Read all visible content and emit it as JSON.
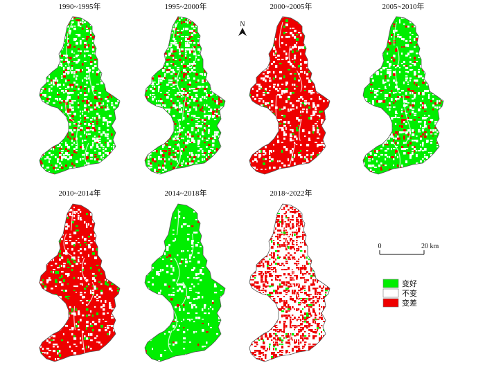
{
  "panels": [
    {
      "title": "1990~1995年",
      "dominant": "improve",
      "mix": {
        "improve": 0.7,
        "nochange": 0.22,
        "degrade": 0.08
      }
    },
    {
      "title": "1995~2000年",
      "dominant": "improve",
      "mix": {
        "improve": 0.66,
        "nochange": 0.24,
        "degrade": 0.1
      }
    },
    {
      "title": "2000~2005年",
      "dominant": "degrade",
      "mix": {
        "improve": 0.04,
        "nochange": 0.18,
        "degrade": 0.78
      }
    },
    {
      "title": "2005~2010年",
      "dominant": "improve",
      "mix": {
        "improve": 0.74,
        "nochange": 0.18,
        "degrade": 0.08
      }
    },
    {
      "title": "2010~2014年",
      "dominant": "degrade",
      "mix": {
        "improve": 0.06,
        "nochange": 0.14,
        "degrade": 0.8
      }
    },
    {
      "title": "2014~2018年",
      "dominant": "improve",
      "mix": {
        "improve": 0.9,
        "nochange": 0.09,
        "degrade": 0.01
      }
    },
    {
      "title": "2018~2022年",
      "dominant": "nochange",
      "mix": {
        "improve": 0.04,
        "nochange": 0.58,
        "degrade": 0.38
      }
    }
  ],
  "north_arrow": {
    "label": "N"
  },
  "scale_bar": {
    "start_label": "0",
    "end_label": "20 km"
  },
  "legend": [
    {
      "key": "improve",
      "label": "变好",
      "color": "#00ee00"
    },
    {
      "key": "nochange",
      "label": "不变",
      "color": "#ffffff"
    },
    {
      "key": "degrade",
      "label": "变差",
      "color": "#ee0000"
    }
  ],
  "colors": {
    "improve": "#00ee00",
    "nochange": "#ffffff",
    "degrade": "#ee0000",
    "outline": "#555555"
  }
}
